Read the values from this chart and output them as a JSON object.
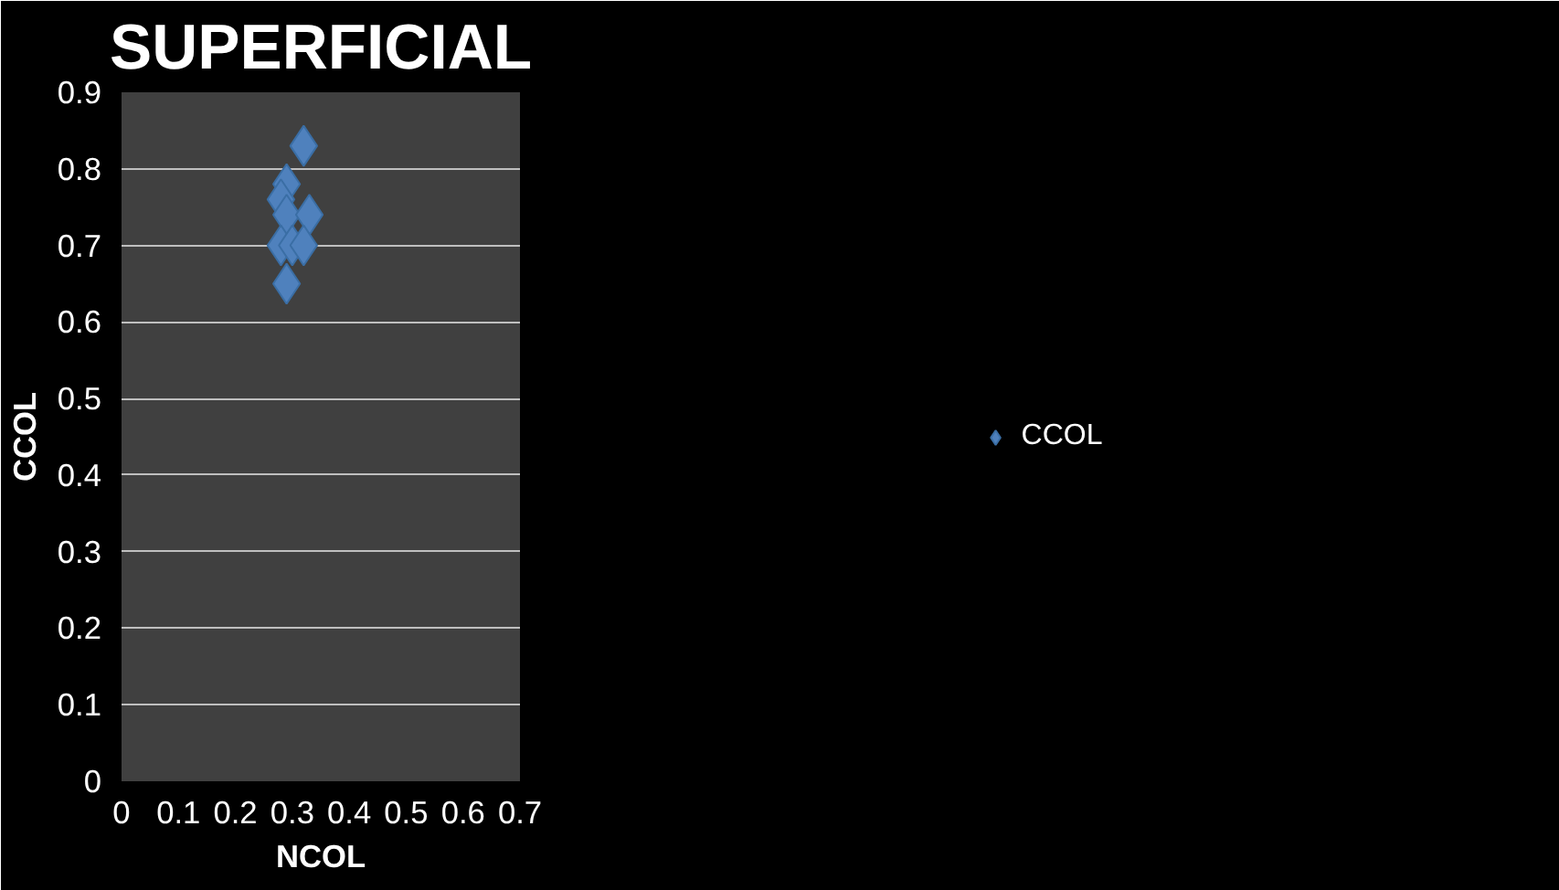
{
  "chart_data": {
    "type": "scatter",
    "title": "SUPERFICIAL",
    "xlabel": "NCOL",
    "ylabel": "CCOL",
    "xlim": [
      0,
      0.7
    ],
    "xticks": [
      0,
      0.1,
      0.2,
      0.3,
      0.4,
      0.5,
      0.6,
      0.7
    ],
    "ylim": [
      0,
      0.9
    ],
    "yticks": [
      0,
      0.1,
      0.2,
      0.3,
      0.4,
      0.5,
      0.6,
      0.7,
      0.8,
      0.9
    ],
    "grid": "y",
    "legend": "right",
    "marker": "diamond",
    "series": [
      {
        "name": "CCOL",
        "color": "#4f81bd",
        "x": [
          0.32,
          0.29,
          0.28,
          0.29,
          0.33,
          0.28,
          0.3,
          0.32,
          0.29
        ],
        "values": [
          0.83,
          0.78,
          0.76,
          0.74,
          0.74,
          0.7,
          0.7,
          0.7,
          0.65
        ]
      }
    ]
  }
}
